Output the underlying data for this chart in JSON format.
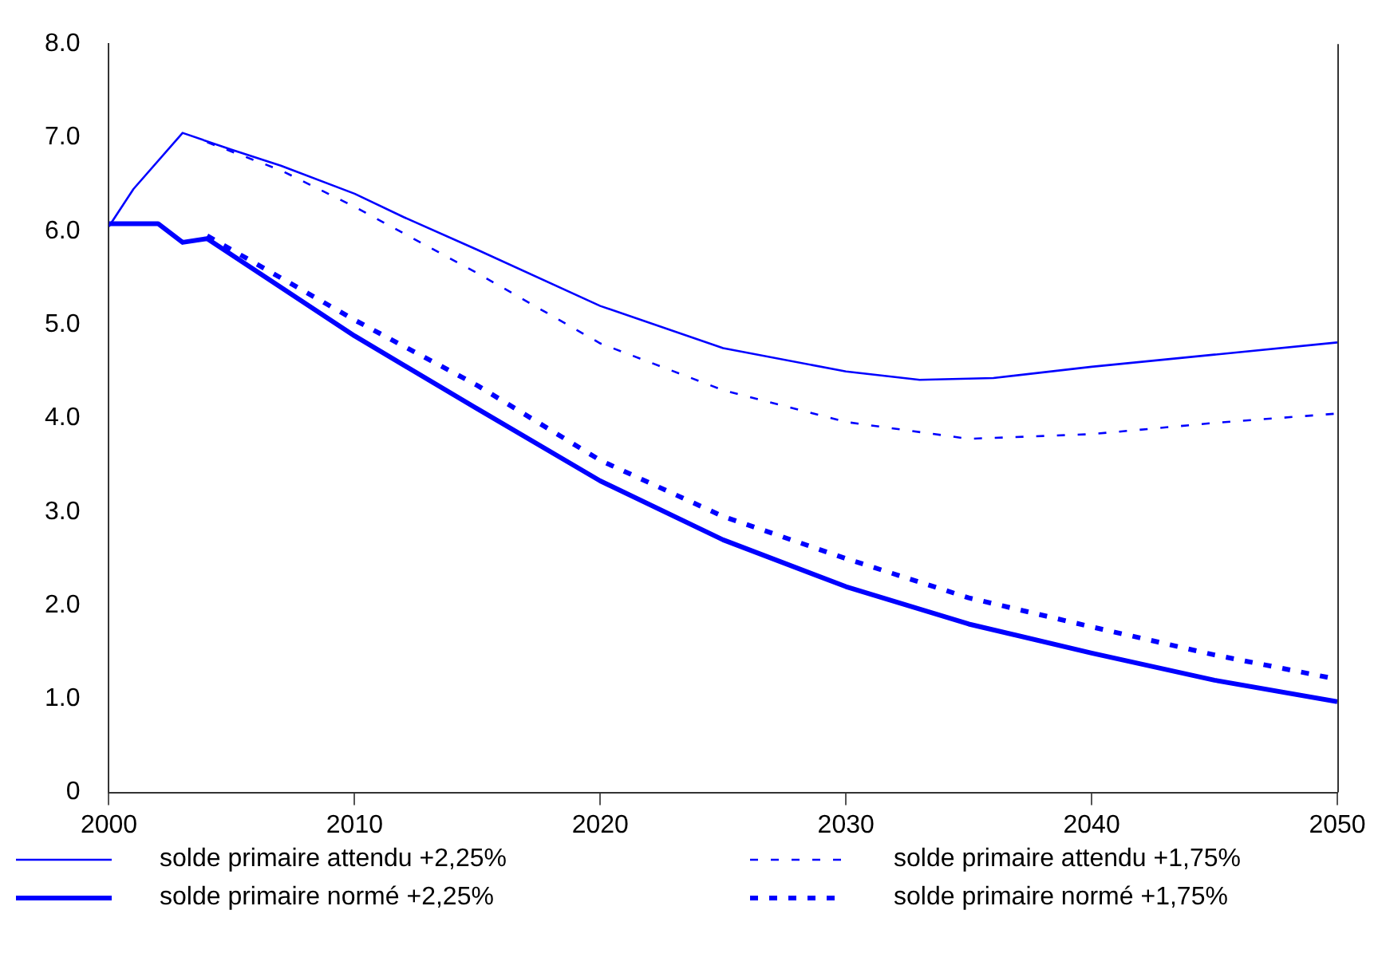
{
  "chart_data": {
    "type": "line",
    "xlim": [
      2000,
      2050
    ],
    "xticks": [
      2000,
      2010,
      2020,
      2030,
      2040,
      2050
    ],
    "ylim": [
      0,
      8
    ],
    "yticks": [
      0,
      {
        "value": 1,
        "label": "1.0"
      },
      {
        "value": 2,
        "label": "2.0"
      },
      {
        "value": 3,
        "label": "3.0"
      },
      {
        "value": 4,
        "label": "4.0"
      },
      {
        "value": 5,
        "label": "5.0"
      },
      {
        "value": 6,
        "label": "6.0"
      },
      {
        "value": 7,
        "label": "7.0"
      },
      {
        "value": 8,
        "label": "8.0"
      }
    ],
    "grid": false,
    "legend": "bottom",
    "marker": "none",
    "series": [
      {
        "name": "solde primaire attendu +2,25%",
        "color": "#0000ff",
        "line_style": "solid",
        "x": [
          2000,
          2001,
          2003,
          2005,
          2007,
          2010,
          2012,
          2015,
          2020,
          2025,
          2030,
          2033,
          2036,
          2040,
          2045,
          2050
        ],
        "values": [
          6.05,
          6.45,
          7.05,
          6.87,
          6.7,
          6.4,
          6.15,
          5.8,
          5.2,
          4.75,
          4.5,
          4.41,
          4.43,
          4.55,
          4.68,
          4.81
        ]
      },
      {
        "name": "solde primaire attendu +1,75%",
        "color": "#0000ff",
        "line_style": "dashed",
        "x": [
          2004,
          2007,
          2010,
          2015,
          2020,
          2025,
          2030,
          2035,
          2040,
          2045,
          2050
        ],
        "values": [
          6.95,
          6.65,
          6.26,
          5.55,
          4.8,
          4.3,
          3.96,
          3.78,
          3.83,
          3.95,
          4.05
        ]
      },
      {
        "name": "solde primaire normé +2,25%",
        "color": "#0000ff",
        "line_style": "solid",
        "x": [
          2000,
          2002,
          2003,
          2004,
          2010,
          2015,
          2020,
          2025,
          2030,
          2035,
          2040,
          2045,
          2050
        ],
        "values": [
          6.08,
          6.08,
          5.88,
          5.92,
          4.88,
          4.1,
          3.33,
          2.7,
          2.2,
          1.8,
          1.49,
          1.2,
          0.97
        ]
      },
      {
        "name": "solde primaire normé +1,75%",
        "color": "#0000ff",
        "line_style": "dashed",
        "x": [
          2004,
          2010,
          2015,
          2020,
          2025,
          2030,
          2035,
          2040,
          2045,
          2050
        ],
        "values": [
          5.95,
          5.05,
          4.35,
          3.55,
          2.95,
          2.5,
          2.08,
          1.77,
          1.47,
          1.21
        ]
      }
    ]
  }
}
